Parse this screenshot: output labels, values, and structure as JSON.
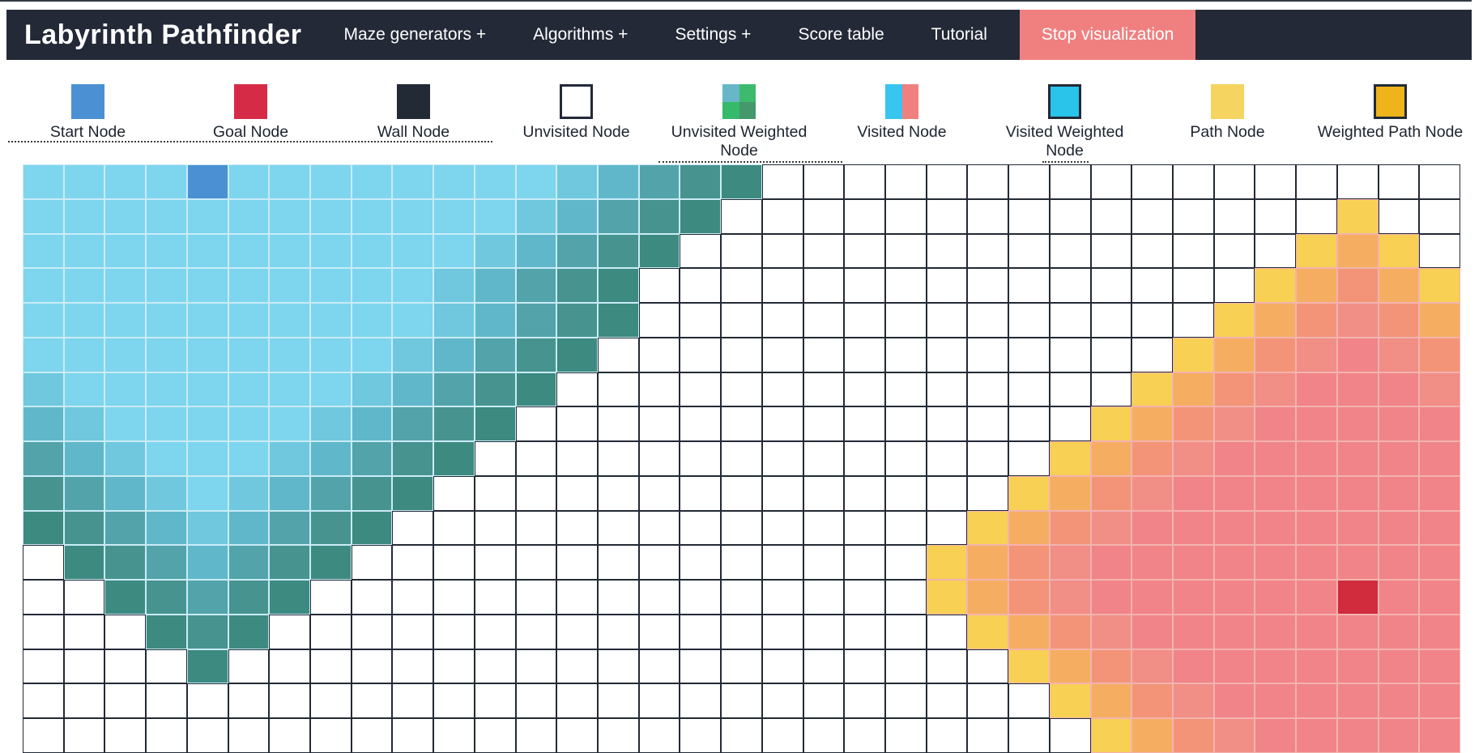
{
  "app": {
    "title": "Labyrinth Pathfinder"
  },
  "navbar": {
    "items": [
      {
        "label": "Maze generators +"
      },
      {
        "label": "Algorithms +"
      },
      {
        "label": "Settings +"
      },
      {
        "label": "Score table"
      },
      {
        "label": "Tutorial"
      }
    ],
    "stop_button": "Stop visualization",
    "colors": {
      "bar_bg": "#232937",
      "stop_bg": "#f08080",
      "text": "#ffffff"
    }
  },
  "legend": {
    "items": [
      {
        "label": "Start Node",
        "type": "start",
        "colors": [
          "#4a90d2"
        ]
      },
      {
        "label": "Goal Node",
        "type": "goal",
        "colors": [
          "#d62b47"
        ]
      },
      {
        "label": "Wall Node",
        "type": "wall",
        "colors": [
          "#222a36"
        ]
      },
      {
        "label": "Unvisited Node",
        "type": "unvisited",
        "colors": [
          "#ffffff"
        ],
        "border": "#222a36"
      },
      {
        "label": "Unvisited Weighted Node",
        "type": "unvisited-weighted",
        "colors": [
          "#68b7c8",
          "#3eba6d",
          "#36b969",
          "#43996c"
        ]
      },
      {
        "label": "Visited Node",
        "type": "visited",
        "colors": [
          "#38c5f0",
          "#f08080"
        ]
      },
      {
        "label": "Visited Weighted Node",
        "type": "visited-weighted",
        "colors": [
          "#2ac3ea"
        ],
        "border": "#222a36"
      },
      {
        "label": "Path Node",
        "type": "path",
        "colors": [
          "#f5d45f"
        ]
      },
      {
        "label": "Weighted Path Node",
        "type": "weighted-path",
        "colors": [
          "#efb41b"
        ],
        "border": "#222a36"
      }
    ]
  },
  "grid": {
    "rows": 17,
    "cols": 35,
    "start": {
      "row": 0,
      "col": 4
    },
    "goal": {
      "row": 12,
      "col": 32
    },
    "legend_key": {
      ".": "unvisited white cell",
      "a": "visited from start - oldest (light cyan)",
      "b": "visited from start - older (cyan)",
      "c": "visited from start - mid (teal cyan)",
      "d": "visited from start - recent (teal)",
      "e": "visited from start - newer (dark teal)",
      "f": "visited from start - frontier (darkest green-teal)",
      "y": "visited from goal - frontier (yellow)",
      "o": "visited from goal - newer (orange)",
      "m": "visited from goal - recent (salmon)",
      "n": "visited from goal - older (salmon pink)",
      "p": "visited from goal - oldest (pink)",
      "S": "start node (blue)",
      "G": "goal node (crimson)"
    },
    "palette": {
      ".": "#ffffff",
      "a": "#7ed5ee",
      "b": "#6fc8de",
      "c": "#61b7ca",
      "d": "#53a3ab",
      "e": "#479390",
      "f": "#3d8a80",
      "y": "#f7d054",
      "o": "#f5ad62",
      "m": "#f39478",
      "n": "#f18e86",
      "p": "#f08488",
      "S": "#4a90d2",
      "G": "#d02c3e"
    },
    "border_colors": {
      "cool": "#c9ecf7",
      "warm": "#f4b3af",
      "empty": "#222a36"
    },
    "cell_map": [
      "aaaaSaaaaaaaabcdef.................",
      "aaaaaaaaaaaabcdef...............y..",
      "aaaaaaaaaaabcdef...............yoy.",
      "aaaaaaaaaabcdef...............yomoy",
      "aaaaaaaaaabcdef..............yomnmo",
      "aaaaaaaaabcdef..............yomnpnm",
      "baaaaaaabcdef..............yomnpppn",
      "cbaaaaabcdef..............yomnppppp",
      "dcbaaabcdef..............yomnpppppp",
      "edcbabcdef..............yomnppppppp",
      "fedcbcdef..............yomnpppppppp",
      ".fedcdef..............yomnppppppppp",
      "..fedef...............yomnppppppGpp",
      "...fef.................yomnpppppppp",
      "....f...................yomnppppppp",
      ".........................yomnpppppp",
      "..........................yomnppppp"
    ]
  }
}
